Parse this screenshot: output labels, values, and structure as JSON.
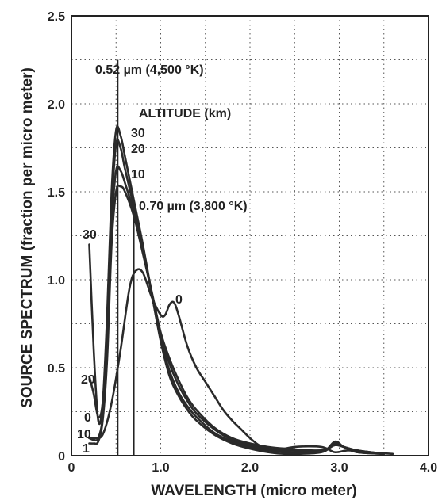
{
  "chart_data": {
    "type": "line",
    "xlabel": "WAVELENGTH (micro meter)",
    "ylabel": "SOURCE SPECTRUM (fraction per micro meter)",
    "xlim": [
      0,
      4.0
    ],
    "ylim": [
      0,
      2.5
    ],
    "xticks": [
      "0",
      "1.0",
      "2.0",
      "3.0",
      "4.0"
    ],
    "yticks": [
      "0",
      "0.5",
      "1.0",
      "1.5",
      "2.0",
      "2.5"
    ],
    "grid": true,
    "legend_title": "ALTITUDE (km)",
    "series": [
      {
        "name": "30",
        "points": [
          [
            0.2,
            1.2
          ],
          [
            0.25,
            0.6
          ],
          [
            0.3,
            0.2
          ],
          [
            0.35,
            0.3
          ],
          [
            0.4,
            0.8
          ],
          [
            0.45,
            1.5
          ],
          [
            0.5,
            1.85
          ],
          [
            0.55,
            1.82
          ],
          [
            0.6,
            1.7
          ],
          [
            0.7,
            1.45
          ],
          [
            0.8,
            1.2
          ],
          [
            0.9,
            0.92
          ],
          [
            1.0,
            0.65
          ],
          [
            1.1,
            0.45
          ],
          [
            1.2,
            0.34
          ],
          [
            1.3,
            0.26
          ],
          [
            1.4,
            0.2
          ],
          [
            1.6,
            0.12
          ],
          [
            1.8,
            0.07
          ],
          [
            2.0,
            0.04
          ],
          [
            2.2,
            0.02
          ],
          [
            2.4,
            0.01
          ],
          [
            2.8,
            0.02
          ],
          [
            2.95,
            0.08
          ],
          [
            3.05,
            0.05
          ],
          [
            3.2,
            0.02
          ],
          [
            3.5,
            0.01
          ]
        ]
      },
      {
        "name": "20",
        "points": [
          [
            0.2,
            0.45
          ],
          [
            0.25,
            0.35
          ],
          [
            0.3,
            0.22
          ],
          [
            0.35,
            0.3
          ],
          [
            0.4,
            0.7
          ],
          [
            0.45,
            1.4
          ],
          [
            0.5,
            1.77
          ],
          [
            0.55,
            1.75
          ],
          [
            0.6,
            1.63
          ],
          [
            0.7,
            1.41
          ],
          [
            0.8,
            1.18
          ],
          [
            0.9,
            0.92
          ],
          [
            1.0,
            0.66
          ],
          [
            1.1,
            0.48
          ],
          [
            1.2,
            0.36
          ],
          [
            1.3,
            0.28
          ],
          [
            1.4,
            0.22
          ],
          [
            1.6,
            0.13
          ],
          [
            1.8,
            0.08
          ],
          [
            2.0,
            0.05
          ],
          [
            2.2,
            0.03
          ],
          [
            2.4,
            0.02
          ],
          [
            2.8,
            0.02
          ],
          [
            2.95,
            0.07
          ],
          [
            3.05,
            0.05
          ],
          [
            3.2,
            0.02
          ],
          [
            3.5,
            0.01
          ]
        ]
      },
      {
        "name": "10",
        "points": [
          [
            0.2,
            0.1
          ],
          [
            0.25,
            0.09
          ],
          [
            0.3,
            0.1
          ],
          [
            0.35,
            0.22
          ],
          [
            0.4,
            0.6
          ],
          [
            0.45,
            1.3
          ],
          [
            0.5,
            1.62
          ],
          [
            0.55,
            1.62
          ],
          [
            0.6,
            1.55
          ],
          [
            0.7,
            1.38
          ],
          [
            0.8,
            1.16
          ],
          [
            0.9,
            0.92
          ],
          [
            1.0,
            0.68
          ],
          [
            1.1,
            0.52
          ],
          [
            1.2,
            0.4
          ],
          [
            1.3,
            0.31
          ],
          [
            1.4,
            0.24
          ],
          [
            1.6,
            0.15
          ],
          [
            1.8,
            0.09
          ],
          [
            2.0,
            0.06
          ],
          [
            2.2,
            0.04
          ],
          [
            2.4,
            0.03
          ],
          [
            2.8,
            0.03
          ],
          [
            2.95,
            0.06
          ],
          [
            3.05,
            0.05
          ],
          [
            3.2,
            0.03
          ],
          [
            3.5,
            0.01
          ]
        ]
      },
      {
        "name": "1",
        "points": [
          [
            0.2,
            0.07
          ],
          [
            0.25,
            0.07
          ],
          [
            0.3,
            0.08
          ],
          [
            0.35,
            0.2
          ],
          [
            0.4,
            0.55
          ],
          [
            0.45,
            1.2
          ],
          [
            0.5,
            1.5
          ],
          [
            0.55,
            1.53
          ],
          [
            0.6,
            1.5
          ],
          [
            0.7,
            1.36
          ],
          [
            0.8,
            1.15
          ],
          [
            0.9,
            0.93
          ],
          [
            1.0,
            0.7
          ],
          [
            1.1,
            0.55
          ],
          [
            1.2,
            0.43
          ],
          [
            1.3,
            0.33
          ],
          [
            1.4,
            0.26
          ],
          [
            1.6,
            0.16
          ],
          [
            1.8,
            0.1
          ],
          [
            2.0,
            0.07
          ],
          [
            2.2,
            0.05
          ],
          [
            2.4,
            0.04
          ],
          [
            2.8,
            0.03
          ],
          [
            2.95,
            0.06
          ],
          [
            3.05,
            0.05
          ],
          [
            3.2,
            0.03
          ],
          [
            3.5,
            0.01
          ]
        ]
      },
      {
        "name": "0",
        "points": [
          [
            0.2,
            0.1
          ],
          [
            0.25,
            0.1
          ],
          [
            0.35,
            0.12
          ],
          [
            0.45,
            0.3
          ],
          [
            0.55,
            0.6
          ],
          [
            0.65,
            0.95
          ],
          [
            0.72,
            1.05
          ],
          [
            0.8,
            1.04
          ],
          [
            0.9,
            0.9
          ],
          [
            1.0,
            0.8
          ],
          [
            1.05,
            0.8
          ],
          [
            1.1,
            0.86
          ],
          [
            1.15,
            0.87
          ],
          [
            1.2,
            0.8
          ],
          [
            1.3,
            0.62
          ],
          [
            1.4,
            0.5
          ],
          [
            1.5,
            0.42
          ],
          [
            1.6,
            0.34
          ],
          [
            1.7,
            0.26
          ],
          [
            1.8,
            0.2
          ],
          [
            1.9,
            0.15
          ],
          [
            2.0,
            0.1
          ],
          [
            2.1,
            0.06
          ],
          [
            2.2,
            0.04
          ],
          [
            2.3,
            0.03
          ],
          [
            2.5,
            0.05
          ],
          [
            2.8,
            0.05
          ],
          [
            2.95,
            0.02
          ],
          [
            3.1,
            0.03
          ],
          [
            3.3,
            0.02
          ],
          [
            3.6,
            0.01
          ]
        ]
      }
    ],
    "annotations": [
      {
        "text": "0.52 µm (4,500 °K)",
        "x": 0.52
      },
      {
        "text": "0.70 µm (3,800 °K)",
        "x": 0.7
      }
    ]
  }
}
